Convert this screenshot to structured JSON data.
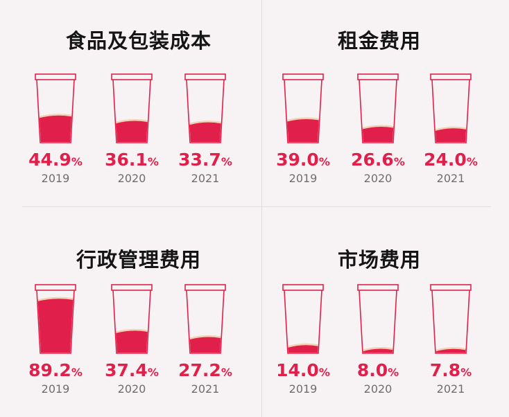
{
  "chart_data": [
    {
      "type": "bar",
      "title": "食品及包装成本",
      "categories": [
        "2019",
        "2020",
        "2021"
      ],
      "values": [
        44.9,
        36.1,
        33.7
      ],
      "value_labels": [
        "44.9",
        "36.1",
        "33.7"
      ],
      "unit": "%"
    },
    {
      "type": "bar",
      "title": "租金费用",
      "categories": [
        "2019",
        "2020",
        "2021"
      ],
      "values": [
        39.0,
        26.6,
        24.0
      ],
      "value_labels": [
        "39.0",
        "26.6",
        "24.0"
      ],
      "unit": "%"
    },
    {
      "type": "bar",
      "title": "行政管理费用",
      "categories": [
        "2019",
        "2020",
        "2021"
      ],
      "values": [
        89.2,
        37.4,
        27.2
      ],
      "value_labels": [
        "89.2",
        "37.4",
        "27.2"
      ],
      "unit": "%"
    },
    {
      "type": "bar",
      "title": "市场费用",
      "categories": [
        "2019",
        "2020",
        "2021"
      ],
      "values": [
        14.0,
        8.0,
        7.8
      ],
      "value_labels": [
        "14.0",
        "8.0",
        "7.8"
      ],
      "unit": "%"
    }
  ],
  "colors": {
    "accent": "#e0204a",
    "foam": "#f1d2b3",
    "background": "#f7f2f4",
    "title": "#151515",
    "year": "#6d6d6d"
  }
}
